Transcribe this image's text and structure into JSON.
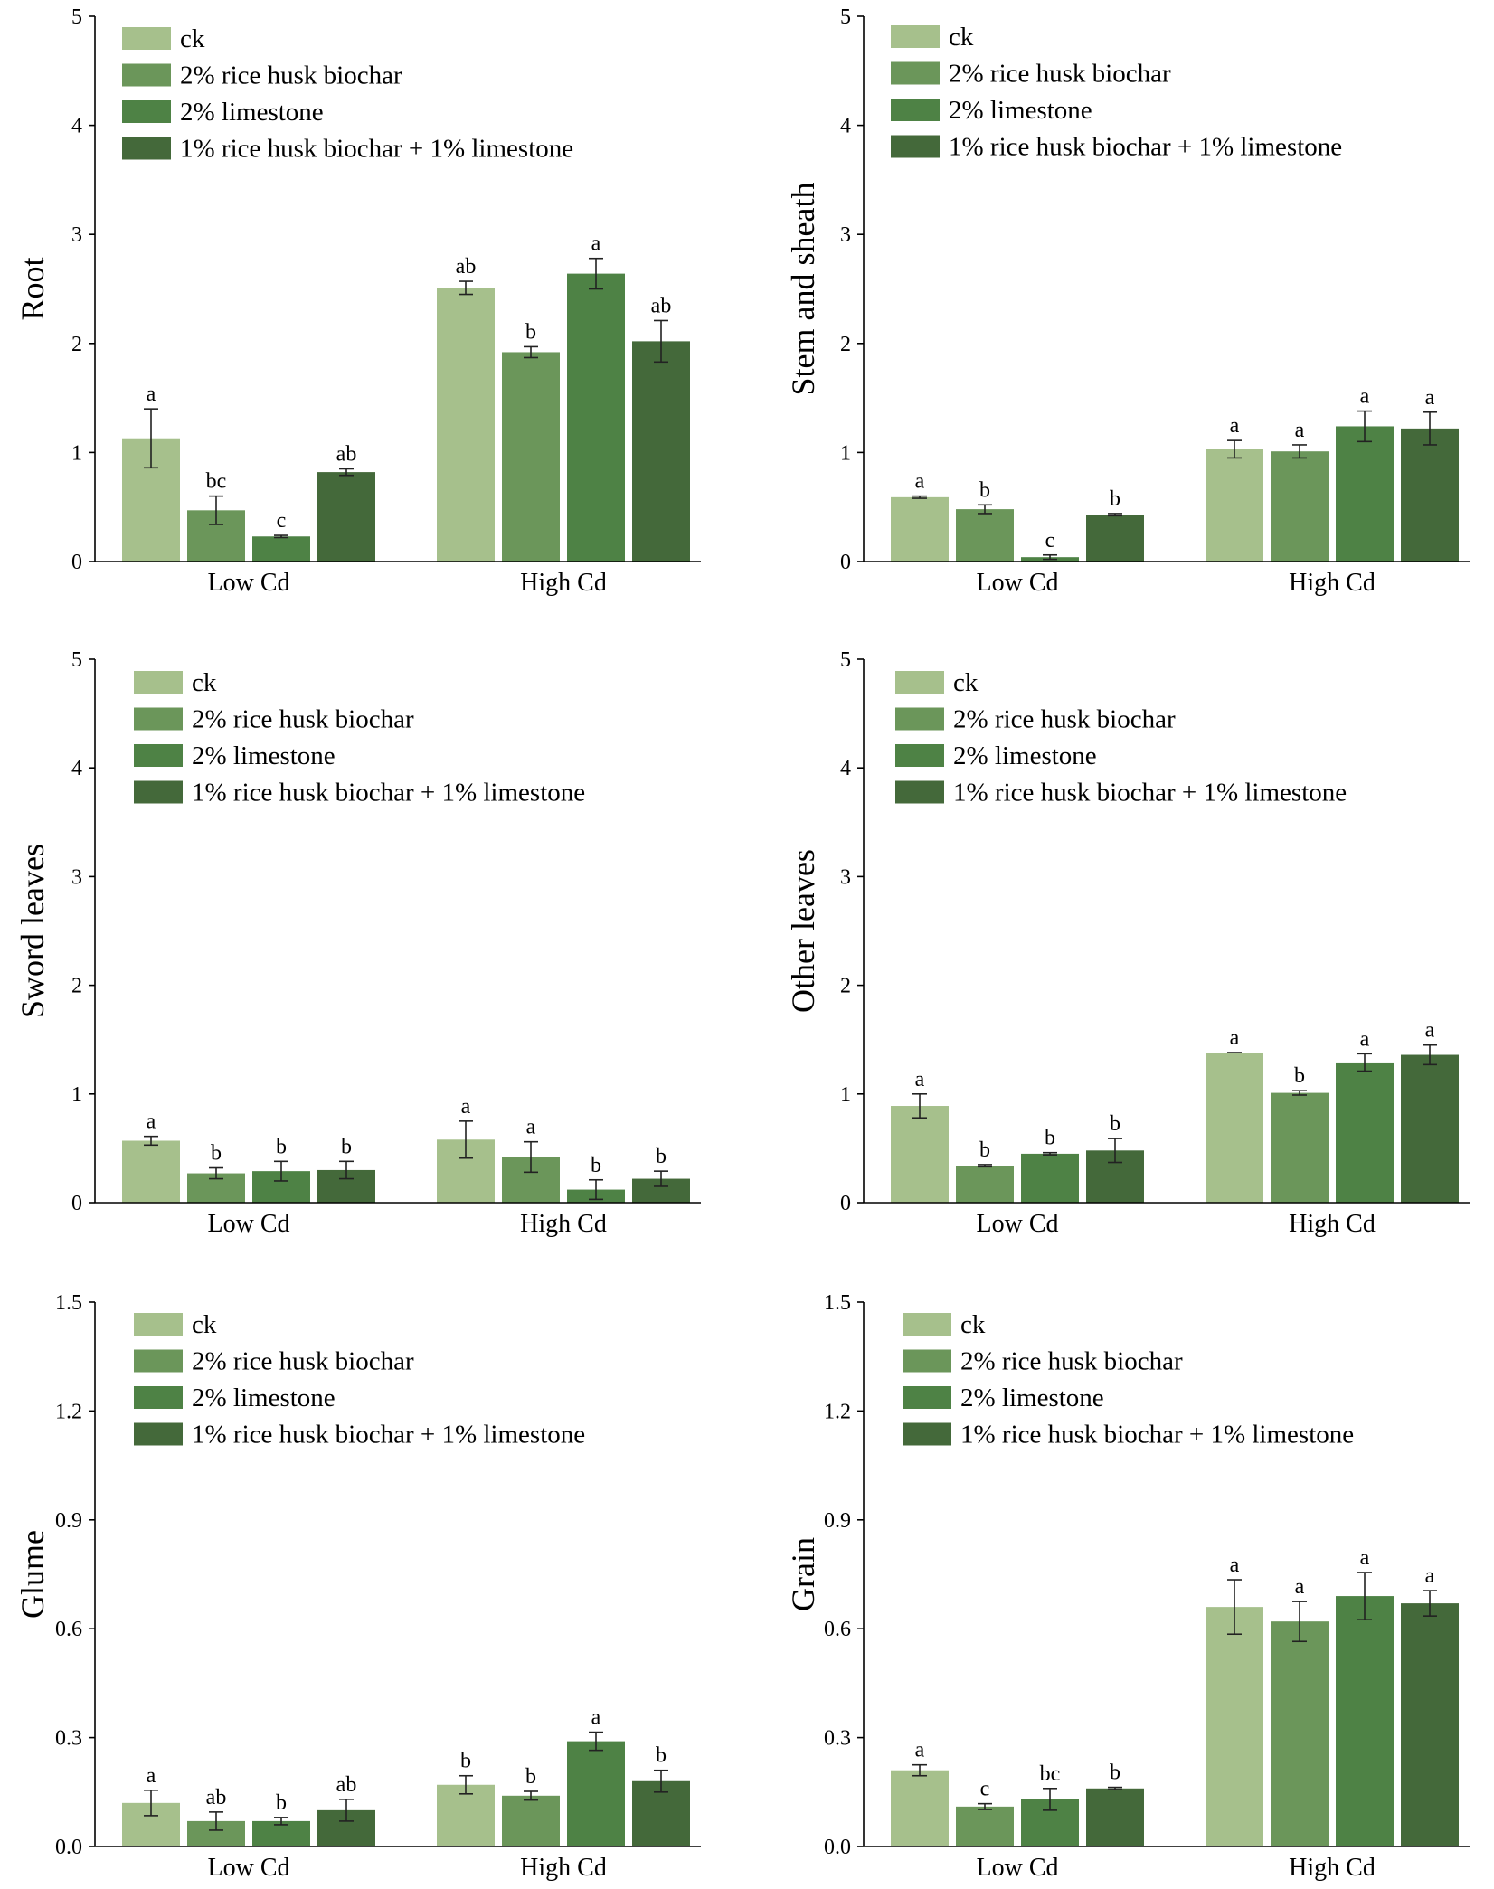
{
  "colors": [
    "#a6c08c",
    "#6b965a",
    "#4e8245",
    "#44693a"
  ],
  "legend": [
    "ck",
    "2% rice husk biochar",
    "2% limestone",
    "1% rice husk biochar + 1% limestone"
  ],
  "chart_data": [
    {
      "type": "bar",
      "ylabel": "Root",
      "ylim": [
        0,
        5
      ],
      "yticks": [
        "0",
        "1",
        "2",
        "3",
        "4",
        "5"
      ],
      "categories": [
        "Low Cd",
        "High Cd"
      ],
      "series": [
        {
          "name": "ck",
          "values": [
            1.13,
            2.51
          ],
          "errors": [
            0.27,
            0.06
          ],
          "labels": [
            "a",
            "ab"
          ]
        },
        {
          "name": "2% rice husk biochar",
          "values": [
            0.47,
            1.92
          ],
          "errors": [
            0.13,
            0.05
          ],
          "labels": [
            "bc",
            "b"
          ]
        },
        {
          "name": "2% limestone",
          "values": [
            0.23,
            2.64
          ],
          "errors": [
            0.01,
            0.14
          ],
          "labels": [
            "c",
            "a"
          ]
        },
        {
          "name": "1% rice husk biochar + 1% limestone",
          "values": [
            0.82,
            2.02
          ],
          "errors": [
            0.03,
            0.19
          ],
          "labels": [
            "ab",
            "ab"
          ]
        }
      ]
    },
    {
      "type": "bar",
      "ylabel": "Stem and sheath",
      "ylim": [
        0,
        5
      ],
      "yticks": [
        "0",
        "1",
        "2",
        "3",
        "4",
        "5"
      ],
      "categories": [
        "Low Cd",
        "High Cd"
      ],
      "series": [
        {
          "name": "ck",
          "values": [
            0.59,
            1.03
          ],
          "errors": [
            0.01,
            0.08
          ],
          "labels": [
            "a",
            "a"
          ]
        },
        {
          "name": "2% rice husk biochar",
          "values": [
            0.48,
            1.01
          ],
          "errors": [
            0.04,
            0.06
          ],
          "labels": [
            "b",
            "a"
          ]
        },
        {
          "name": "2% limestone",
          "values": [
            0.04,
            1.24
          ],
          "errors": [
            0.02,
            0.14
          ],
          "labels": [
            "c",
            "a"
          ]
        },
        {
          "name": "1% rice husk biochar + 1% limestone",
          "values": [
            0.43,
            1.22
          ],
          "errors": [
            0.01,
            0.15
          ],
          "labels": [
            "b",
            "a"
          ]
        }
      ]
    },
    {
      "type": "bar",
      "ylabel": "Sword leaves",
      "ylim": [
        0,
        5
      ],
      "yticks": [
        "0",
        "1",
        "2",
        "3",
        "4",
        "5"
      ],
      "categories": [
        "Low Cd",
        "High Cd"
      ],
      "series": [
        {
          "name": "ck",
          "values": [
            0.57,
            0.58
          ],
          "errors": [
            0.04,
            0.17
          ],
          "labels": [
            "a",
            "a"
          ]
        },
        {
          "name": "2% rice husk biochar",
          "values": [
            0.27,
            0.42
          ],
          "errors": [
            0.05,
            0.14
          ],
          "labels": [
            "b",
            "a"
          ]
        },
        {
          "name": "2% limestone",
          "values": [
            0.29,
            0.12
          ],
          "errors": [
            0.09,
            0.09
          ],
          "labels": [
            "b",
            "b"
          ]
        },
        {
          "name": "1% rice husk biochar + 1% limestone",
          "values": [
            0.3,
            0.22
          ],
          "errors": [
            0.08,
            0.07
          ],
          "labels": [
            "b",
            "b"
          ]
        }
      ]
    },
    {
      "type": "bar",
      "ylabel": "Other leaves",
      "ylim": [
        0,
        5
      ],
      "yticks": [
        "0",
        "1",
        "2",
        "3",
        "4",
        "5"
      ],
      "categories": [
        "Low Cd",
        "High Cd"
      ],
      "series": [
        {
          "name": "ck",
          "values": [
            0.89,
            1.38
          ],
          "errors": [
            0.11,
            0.0
          ],
          "labels": [
            "a",
            "a"
          ]
        },
        {
          "name": "2% rice husk biochar",
          "values": [
            0.34,
            1.01
          ],
          "errors": [
            0.01,
            0.02
          ],
          "labels": [
            "b",
            "b"
          ]
        },
        {
          "name": "2% limestone",
          "values": [
            0.45,
            1.29
          ],
          "errors": [
            0.01,
            0.08
          ],
          "labels": [
            "b",
            "a"
          ]
        },
        {
          "name": "1% rice husk biochar + 1% limestone",
          "values": [
            0.48,
            1.36
          ],
          "errors": [
            0.11,
            0.09
          ],
          "labels": [
            "b",
            "a"
          ]
        }
      ]
    },
    {
      "type": "bar",
      "ylabel": "Glume",
      "ylim": [
        0,
        1.5
      ],
      "yticks": [
        "0.0",
        "0.3",
        "0.6",
        "0.9",
        "1.2",
        "1.5"
      ],
      "categories": [
        "Low Cd",
        "High Cd"
      ],
      "series": [
        {
          "name": "ck",
          "values": [
            0.12,
            0.17
          ],
          "errors": [
            0.035,
            0.025
          ],
          "labels": [
            "a",
            "b"
          ]
        },
        {
          "name": "2% rice husk biochar",
          "values": [
            0.07,
            0.14
          ],
          "errors": [
            0.025,
            0.012
          ],
          "labels": [
            "ab",
            "b"
          ]
        },
        {
          "name": "2% limestone",
          "values": [
            0.07,
            0.29
          ],
          "errors": [
            0.01,
            0.025
          ],
          "labels": [
            "b",
            "a"
          ]
        },
        {
          "name": "1% rice husk biochar + 1% limestone",
          "values": [
            0.1,
            0.18
          ],
          "errors": [
            0.03,
            0.03
          ],
          "labels": [
            "ab",
            "b"
          ]
        }
      ]
    },
    {
      "type": "bar",
      "ylabel": "Grain",
      "ylim": [
        0,
        1.5
      ],
      "yticks": [
        "0.0",
        "0.3",
        "0.6",
        "0.9",
        "1.2",
        "1.5"
      ],
      "categories": [
        "Low Cd",
        "High Cd"
      ],
      "series": [
        {
          "name": "ck",
          "values": [
            0.21,
            0.66
          ],
          "errors": [
            0.015,
            0.075
          ],
          "labels": [
            "a",
            "a"
          ]
        },
        {
          "name": "2% rice husk biochar",
          "values": [
            0.11,
            0.62
          ],
          "errors": [
            0.008,
            0.055
          ],
          "labels": [
            "c",
            "a"
          ]
        },
        {
          "name": "2% limestone",
          "values": [
            0.13,
            0.69
          ],
          "errors": [
            0.03,
            0.065
          ],
          "labels": [
            "bc",
            "a"
          ]
        },
        {
          "name": "1% rice husk biochar + 1% limestone",
          "values": [
            0.16,
            0.67
          ],
          "errors": [
            0.003,
            0.035
          ],
          "labels": [
            "b",
            "a"
          ]
        }
      ]
    }
  ]
}
